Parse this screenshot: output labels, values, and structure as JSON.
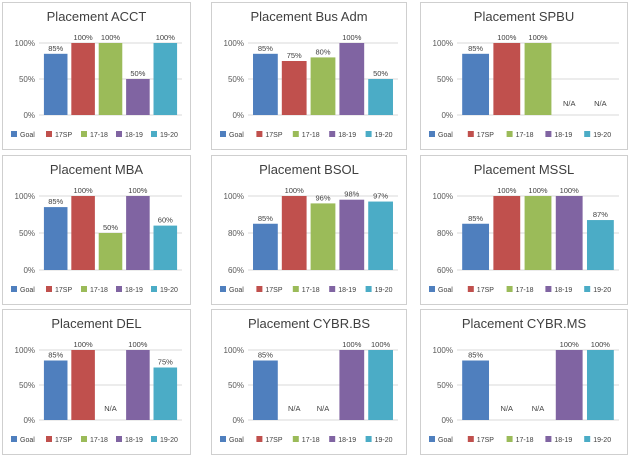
{
  "legend_colors": {
    "Goal": "#4f7fbe",
    "17SP": "#c0504d",
    "17-18": "#9bbb59",
    "18-19": "#8064a2",
    "19-20": "#4bacc6"
  },
  "chart_data": [
    {
      "type": "bar",
      "title": "Placement ACCT",
      "categories": [
        "Goal",
        "17SP",
        "17-18",
        "18-19",
        "19-20"
      ],
      "values": [
        85,
        100,
        100,
        50,
        100
      ],
      "labels": [
        "85%",
        "100%",
        "100%",
        "50%",
        "100%"
      ],
      "ylim": [
        0,
        100
      ],
      "yticks": [
        "0%",
        "50%",
        "100%"
      ],
      "legend": [
        "Goal",
        "17SP",
        "17-18",
        "18-19",
        "19-20"
      ]
    },
    {
      "type": "bar",
      "title": "Placement Bus Adm",
      "categories": [
        "Goal",
        "17SP",
        "17-18",
        "18-19",
        "19-20"
      ],
      "values": [
        85,
        75,
        80,
        100,
        50
      ],
      "labels": [
        "85%",
        "75%",
        "80%",
        "100%",
        "50%"
      ],
      "ylim": [
        0,
        100
      ],
      "yticks": [
        "0%",
        "50%",
        "100%"
      ],
      "legend": [
        "Goal",
        "17SP",
        "17-18",
        "18-19",
        "19-20"
      ]
    },
    {
      "type": "bar",
      "title": "Placement SPBU",
      "categories": [
        "Goal",
        "17SP",
        "17-18",
        "18-19",
        "19-20"
      ],
      "values": [
        85,
        100,
        100,
        null,
        null
      ],
      "labels": [
        "85%",
        "100%",
        "100%",
        "N/A",
        "N/A"
      ],
      "ylim": [
        0,
        100
      ],
      "yticks": [
        "0%",
        "50%",
        "100%"
      ],
      "legend": [
        "Goal",
        "17SP",
        "17-18",
        "18-19",
        "19-20"
      ]
    },
    {
      "type": "bar",
      "title": "Placement MBA",
      "categories": [
        "Goal",
        "17SP",
        "17-18",
        "18-19",
        "19-20"
      ],
      "values": [
        85,
        100,
        50,
        100,
        60
      ],
      "labels": [
        "85%",
        "100%",
        "50%",
        "100%",
        "60%"
      ],
      "ylim": [
        0,
        100
      ],
      "yticks": [
        "0%",
        "50%",
        "100%"
      ],
      "legend": [
        "Goal",
        "17SP",
        "17-18",
        "18-19",
        "19-20"
      ]
    },
    {
      "type": "bar",
      "title": "Placement BSOL",
      "categories": [
        "Goal",
        "17SP",
        "17-18",
        "18-19",
        "19-20"
      ],
      "values": [
        85,
        100,
        96,
        98,
        97
      ],
      "labels": [
        "85%",
        "100%",
        "96%",
        "98%",
        "97%"
      ],
      "ylim": [
        60,
        100
      ],
      "yticks": [
        "60%",
        "80%",
        "100%"
      ],
      "legend": [
        "Goal",
        "17SP",
        "17-18",
        "18-19",
        "19-20"
      ]
    },
    {
      "type": "bar",
      "title": "Placement MSSL",
      "categories": [
        "Goal",
        "17SP",
        "17-18",
        "18-19",
        "19-20"
      ],
      "values": [
        85,
        100,
        100,
        100,
        87
      ],
      "labels": [
        "85%",
        "100%",
        "100%",
        "100%",
        "87%"
      ],
      "ylim": [
        60,
        100
      ],
      "yticks": [
        "60%",
        "80%",
        "100%"
      ],
      "legend": [
        "Goal",
        "17SP",
        "17-18",
        "18-19",
        "19-20"
      ]
    },
    {
      "type": "bar",
      "title": "Placement DEL",
      "categories": [
        "Goal",
        "17SP",
        "17-18",
        "18-19",
        "19-20"
      ],
      "values": [
        85,
        100,
        null,
        100,
        75
      ],
      "labels": [
        "85%",
        "100%",
        "N/A",
        "100%",
        "75%"
      ],
      "ylim": [
        0,
        100
      ],
      "yticks": [
        "0%",
        "50%",
        "100%"
      ],
      "legend": [
        "Goal",
        "17SP",
        "17-18",
        "18-19",
        "19-20"
      ]
    },
    {
      "type": "bar",
      "title": "Placement CYBR.BS",
      "categories": [
        "Goal",
        "17SP",
        "17-18",
        "18-19",
        "19-20"
      ],
      "values": [
        85,
        null,
        null,
        100,
        100
      ],
      "labels": [
        "85%",
        "N/A",
        "N/A",
        "100%",
        "100%"
      ],
      "ylim": [
        0,
        100
      ],
      "yticks": [
        "0%",
        "50%",
        "100%"
      ],
      "legend": [
        "Goal",
        "17SP",
        "17-18",
        "18-19",
        "19-20"
      ]
    },
    {
      "type": "bar",
      "title": "Placement CYBR.MS",
      "categories": [
        "Goal",
        "17SP",
        "17-18",
        "18-19",
        "19-20"
      ],
      "values": [
        85,
        null,
        null,
        100,
        100
      ],
      "labels": [
        "85%",
        "N/A",
        "N/A",
        "100%",
        "100%"
      ],
      "ylim": [
        0,
        100
      ],
      "yticks": [
        "0%",
        "50%",
        "100%"
      ],
      "legend": [
        "Goal",
        "17SP",
        "17-18",
        "18-19",
        "19-20"
      ]
    }
  ]
}
